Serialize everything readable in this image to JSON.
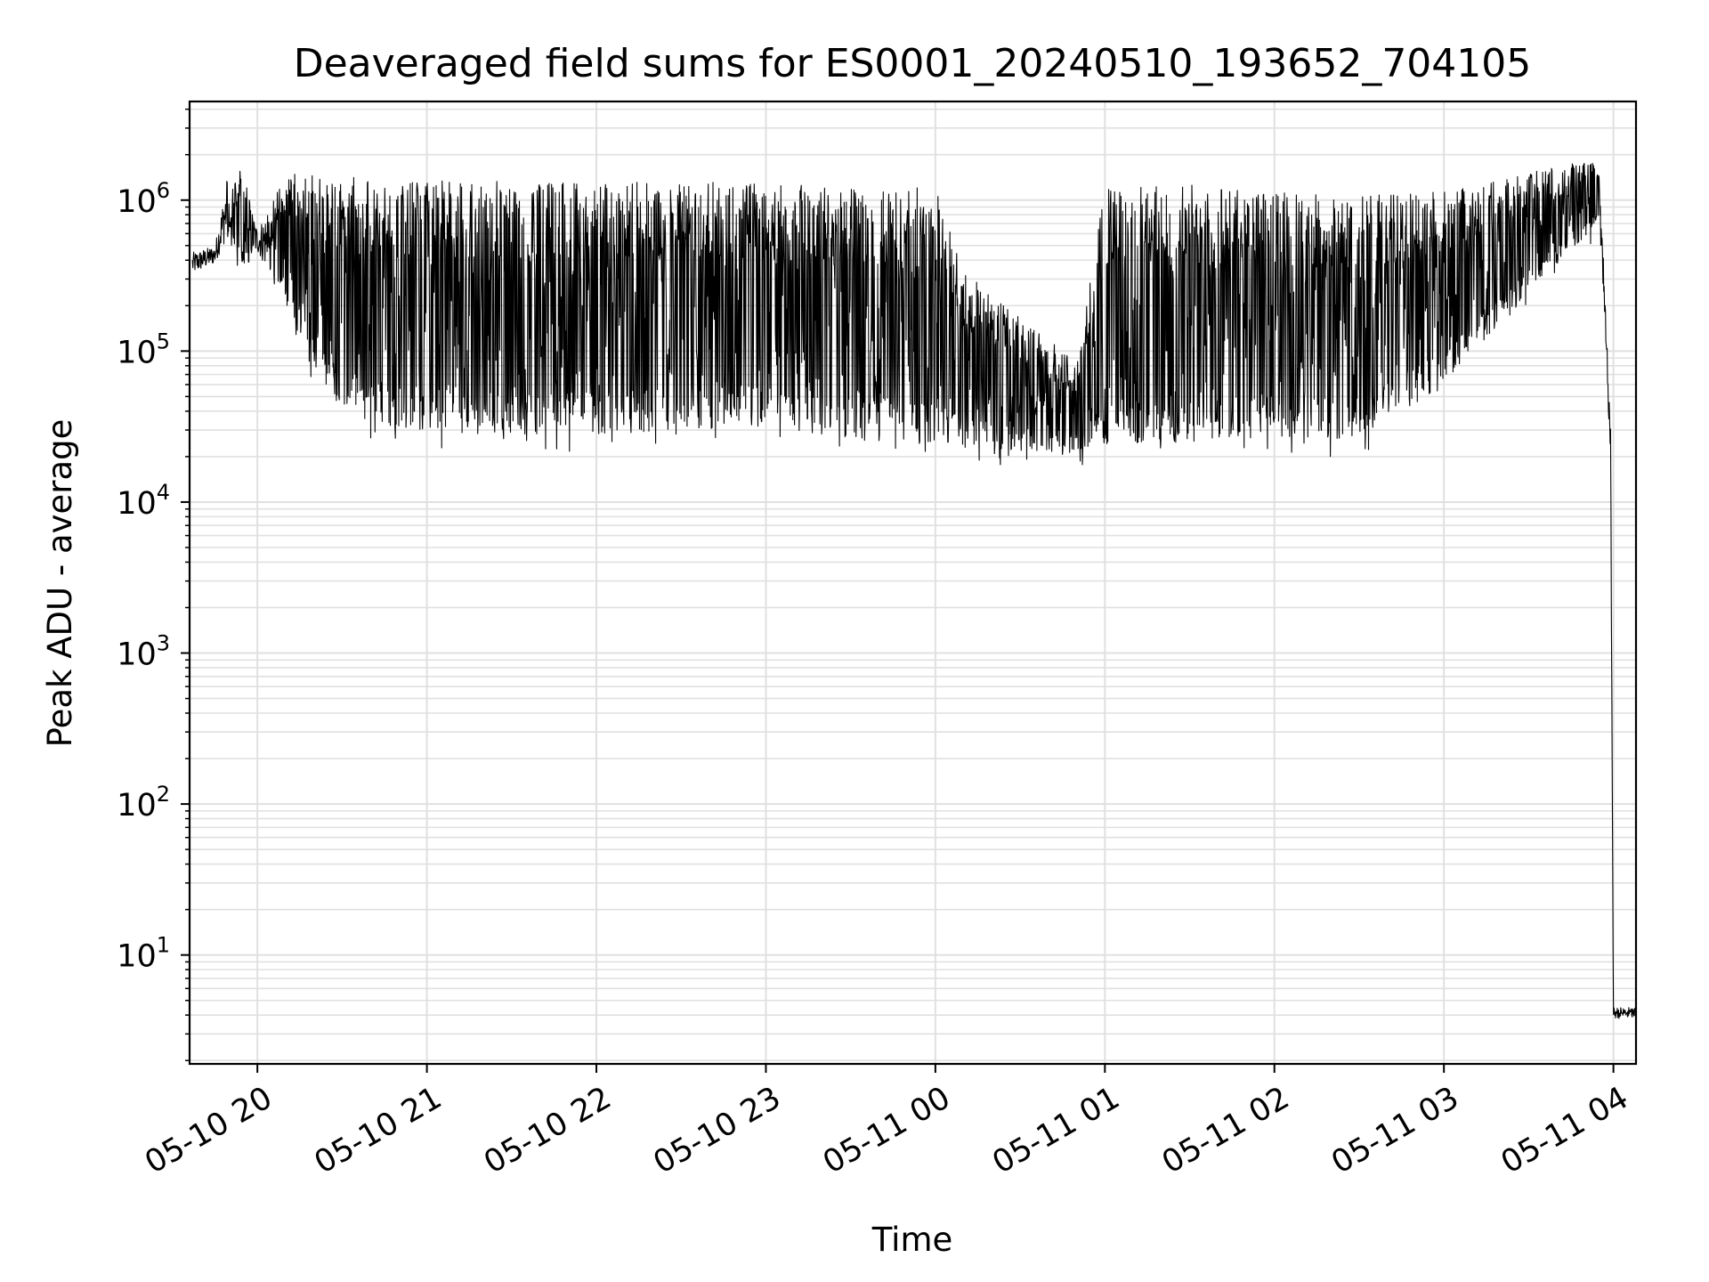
{
  "chart_data": {
    "type": "line",
    "title": "Deaveraged field sums for ES0001_20240510_193652_704105",
    "xlabel": "Time",
    "ylabel": "Peak ADU - average",
    "yscale": "log",
    "ylim": [
      1.9,
      4500000
    ],
    "xlim": [
      "2024-05-10 19:36",
      "2024-05-11 04:08"
    ],
    "grid": true,
    "x_ticks": [
      "05-10 20",
      "05-10 21",
      "05-10 22",
      "05-10 23",
      "05-11 00",
      "05-11 01",
      "05-11 02",
      "05-11 03",
      "05-11 04"
    ],
    "y_ticks": [
      {
        "base": "10",
        "exp": "1"
      },
      {
        "base": "10",
        "exp": "2"
      },
      {
        "base": "10",
        "exp": "3"
      },
      {
        "base": "10",
        "exp": "4"
      },
      {
        "base": "10",
        "exp": "5"
      },
      {
        "base": "10",
        "exp": "6"
      }
    ],
    "series_color": "#000000",
    "grid_color": "#e0e0e0",
    "series": [
      {
        "upper_envelope": [
          {
            "x": "2024-05-10 19:37",
            "y": 450000
          },
          {
            "x": "2024-05-10 19:45",
            "y": 500000
          },
          {
            "x": "2024-05-10 19:50",
            "y": 1700000
          },
          {
            "x": "2024-05-10 19:55",
            "y": 1400000
          },
          {
            "x": "2024-05-10 20:00",
            "y": 650000
          },
          {
            "x": "2024-05-10 20:10",
            "y": 1400000
          },
          {
            "x": "2024-05-10 20:20",
            "y": 1300000
          },
          {
            "x": "2024-05-10 20:30",
            "y": 1200000
          },
          {
            "x": "2024-05-10 21:00",
            "y": 1150000
          },
          {
            "x": "2024-05-10 21:30",
            "y": 1100000
          },
          {
            "x": "2024-05-10 22:00",
            "y": 1100000
          },
          {
            "x": "2024-05-10 22:30",
            "y": 1100000
          },
          {
            "x": "2024-05-10 23:00",
            "y": 1100000
          },
          {
            "x": "2024-05-10 23:30",
            "y": 1000000
          },
          {
            "x": "2024-05-11 00:00",
            "y": 1000000
          },
          {
            "x": "2024-05-11 00:10",
            "y": 300000
          },
          {
            "x": "2024-05-11 00:30",
            "y": 150000
          },
          {
            "x": "2024-05-11 00:50",
            "y": 80000
          },
          {
            "x": "2024-05-11 01:00",
            "y": 1000000
          },
          {
            "x": "2024-05-11 01:30",
            "y": 1050000
          },
          {
            "x": "2024-05-11 02:00",
            "y": 950000
          },
          {
            "x": "2024-05-11 02:30",
            "y": 900000
          },
          {
            "x": "2024-05-11 03:00",
            "y": 1000000
          },
          {
            "x": "2024-05-11 03:30",
            "y": 1400000
          },
          {
            "x": "2024-05-11 03:55",
            "y": 1800000
          },
          {
            "x": "2024-05-11 03:59",
            "y": 30000
          },
          {
            "x": "2024-05-11 04:00",
            "y": 4.5
          },
          {
            "x": "2024-05-11 04:08",
            "y": 4.5
          }
        ],
        "lower_envelope": [
          {
            "x": "2024-05-10 19:37",
            "y": 320000
          },
          {
            "x": "2024-05-10 19:45",
            "y": 380000
          },
          {
            "x": "2024-05-10 19:50",
            "y": 600000
          },
          {
            "x": "2024-05-10 19:55",
            "y": 350000
          },
          {
            "x": "2024-05-10 20:00",
            "y": 450000
          },
          {
            "x": "2024-05-10 20:10",
            "y": 200000
          },
          {
            "x": "2024-05-10 20:20",
            "y": 80000
          },
          {
            "x": "2024-05-10 20:30",
            "y": 40000
          },
          {
            "x": "2024-05-10 20:45",
            "y": 32000
          },
          {
            "x": "2024-05-10 21:00",
            "y": 30000
          },
          {
            "x": "2024-05-10 21:30",
            "y": 27000
          },
          {
            "x": "2024-05-10 22:00",
            "y": 28000
          },
          {
            "x": "2024-05-10 22:30",
            "y": 30000
          },
          {
            "x": "2024-05-10 23:00",
            "y": 32000
          },
          {
            "x": "2024-05-10 23:30",
            "y": 26000
          },
          {
            "x": "2024-05-11 00:00",
            "y": 23000
          },
          {
            "x": "2024-05-11 00:30",
            "y": 22000
          },
          {
            "x": "2024-05-11 00:45",
            "y": 20000
          },
          {
            "x": "2024-05-11 01:00",
            "y": 24000
          },
          {
            "x": "2024-05-11 01:30",
            "y": 25000
          },
          {
            "x": "2024-05-11 02:00",
            "y": 27000
          },
          {
            "x": "2024-05-11 02:30",
            "y": 26000
          },
          {
            "x": "2024-05-11 03:00",
            "y": 60000
          },
          {
            "x": "2024-05-11 03:30",
            "y": 250000
          },
          {
            "x": "2024-05-11 03:55",
            "y": 700000
          },
          {
            "x": "2024-05-11 03:59",
            "y": 20000
          },
          {
            "x": "2024-05-11 04:00",
            "y": 3.8
          },
          {
            "x": "2024-05-11 04:08",
            "y": 3.8
          }
        ]
      }
    ]
  }
}
